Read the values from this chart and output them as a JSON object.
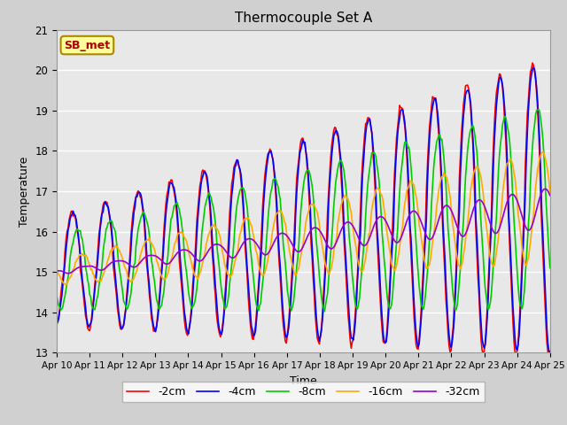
{
  "title": "Thermocouple Set A",
  "xlabel": "Time",
  "ylabel": "Temperature",
  "ylim": [
    13.0,
    21.0
  ],
  "yticks": [
    13.0,
    14.0,
    15.0,
    16.0,
    17.0,
    18.0,
    19.0,
    20.0,
    21.0
  ],
  "xtick_labels": [
    "Apr 10",
    "Apr 11",
    "Apr 12",
    "Apr 13",
    "Apr 14",
    "Apr 15",
    "Apr 16",
    "Apr 17",
    "Apr 18",
    "Apr 19",
    "Apr 20",
    "Apr 21",
    "Apr 22",
    "Apr 23",
    "Apr 24",
    "Apr 25"
  ],
  "series_labels": [
    "-2cm",
    "-4cm",
    "-8cm",
    "-16cm",
    "-32cm"
  ],
  "series_colors": [
    "#ff0000",
    "#0000ff",
    "#00cc00",
    "#ffaa00",
    "#9900cc"
  ],
  "line_width": 1.2,
  "fig_facecolor": "#d0d0d0",
  "ax_facecolor": "#e8e8e8",
  "annotation_text": "SB_met",
  "annotation_bg": "#ffff99",
  "annotation_border": "#aa8800",
  "annotation_text_color": "#aa0000",
  "n_points": 480,
  "end_day": 15
}
